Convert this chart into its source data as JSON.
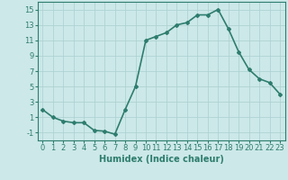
{
  "x": [
    0,
    1,
    2,
    3,
    4,
    5,
    6,
    7,
    8,
    9,
    10,
    11,
    12,
    13,
    14,
    15,
    16,
    17,
    18,
    19,
    20,
    21,
    22,
    23
  ],
  "y": [
    2,
    1,
    0.5,
    0.3,
    0.3,
    -0.7,
    -0.8,
    -1.2,
    2,
    5,
    11,
    11.5,
    12,
    13,
    13.3,
    14.3,
    14.3,
    15,
    12.5,
    9.5,
    7.2,
    6,
    5.5,
    4
  ],
  "line_color": "#2e7d6e",
  "marker": "D",
  "marker_size": 2,
  "bg_color": "#cce8e8",
  "grid_color": "#aacfcf",
  "xlabel": "Humidex (Indice chaleur)",
  "xlabel_fontsize": 7,
  "xlim": [
    -0.5,
    23.5
  ],
  "ylim": [
    -2,
    16
  ],
  "yticks": [
    -1,
    1,
    3,
    5,
    7,
    9,
    11,
    13,
    15
  ],
  "xticks": [
    0,
    1,
    2,
    3,
    4,
    5,
    6,
    7,
    8,
    9,
    10,
    11,
    12,
    13,
    14,
    15,
    16,
    17,
    18,
    19,
    20,
    21,
    22,
    23
  ],
  "tick_fontsize": 6,
  "linewidth": 1.2
}
